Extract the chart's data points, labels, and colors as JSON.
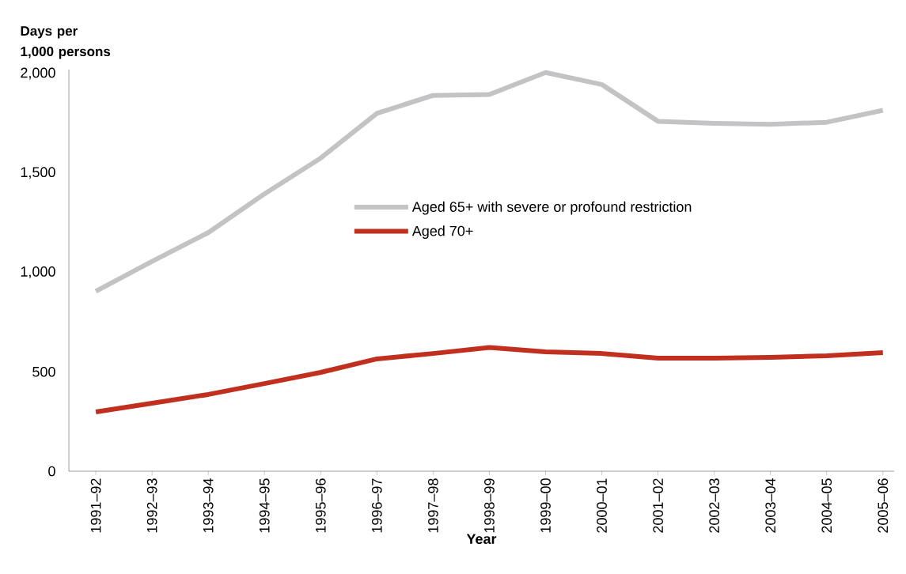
{
  "chart_data": {
    "type": "line",
    "ylabel": "Days per 1,000 persons",
    "xlabel": "Year",
    "categories": [
      "1991–92",
      "1992–93",
      "1993–94",
      "1994–95",
      "1995–96",
      "1996–97",
      "1997–98",
      "1998–99",
      "1999–00",
      "2000–01",
      "2001–02",
      "2002–03",
      "2003–04",
      "2004–05",
      "2005–06"
    ],
    "series": [
      {
        "name": "Aged 65+ with severe or profound restriction",
        "color": "#c3c3c6",
        "values": [
          905,
          1055,
          1200,
          1395,
          1575,
          1800,
          1890,
          1895,
          2005,
          1945,
          1760,
          1750,
          1745,
          1755,
          1815
        ]
      },
      {
        "name": "Aged 70+",
        "color": "#c1301f",
        "values": [
          298,
          342,
          386,
          441,
          497,
          565,
          592,
          622,
          600,
          592,
          569,
          569,
          573,
          581,
          596
        ]
      }
    ],
    "ylim": [
      0,
      2020
    ],
    "yticks": [
      0,
      500,
      {
        "value": 1000,
        "label": "1,000"
      },
      {
        "value": 1500,
        "label": "1,500"
      },
      {
        "value": 2000,
        "label": "2,000"
      }
    ],
    "legend": "center",
    "line_style": "solid",
    "marker": "none"
  }
}
